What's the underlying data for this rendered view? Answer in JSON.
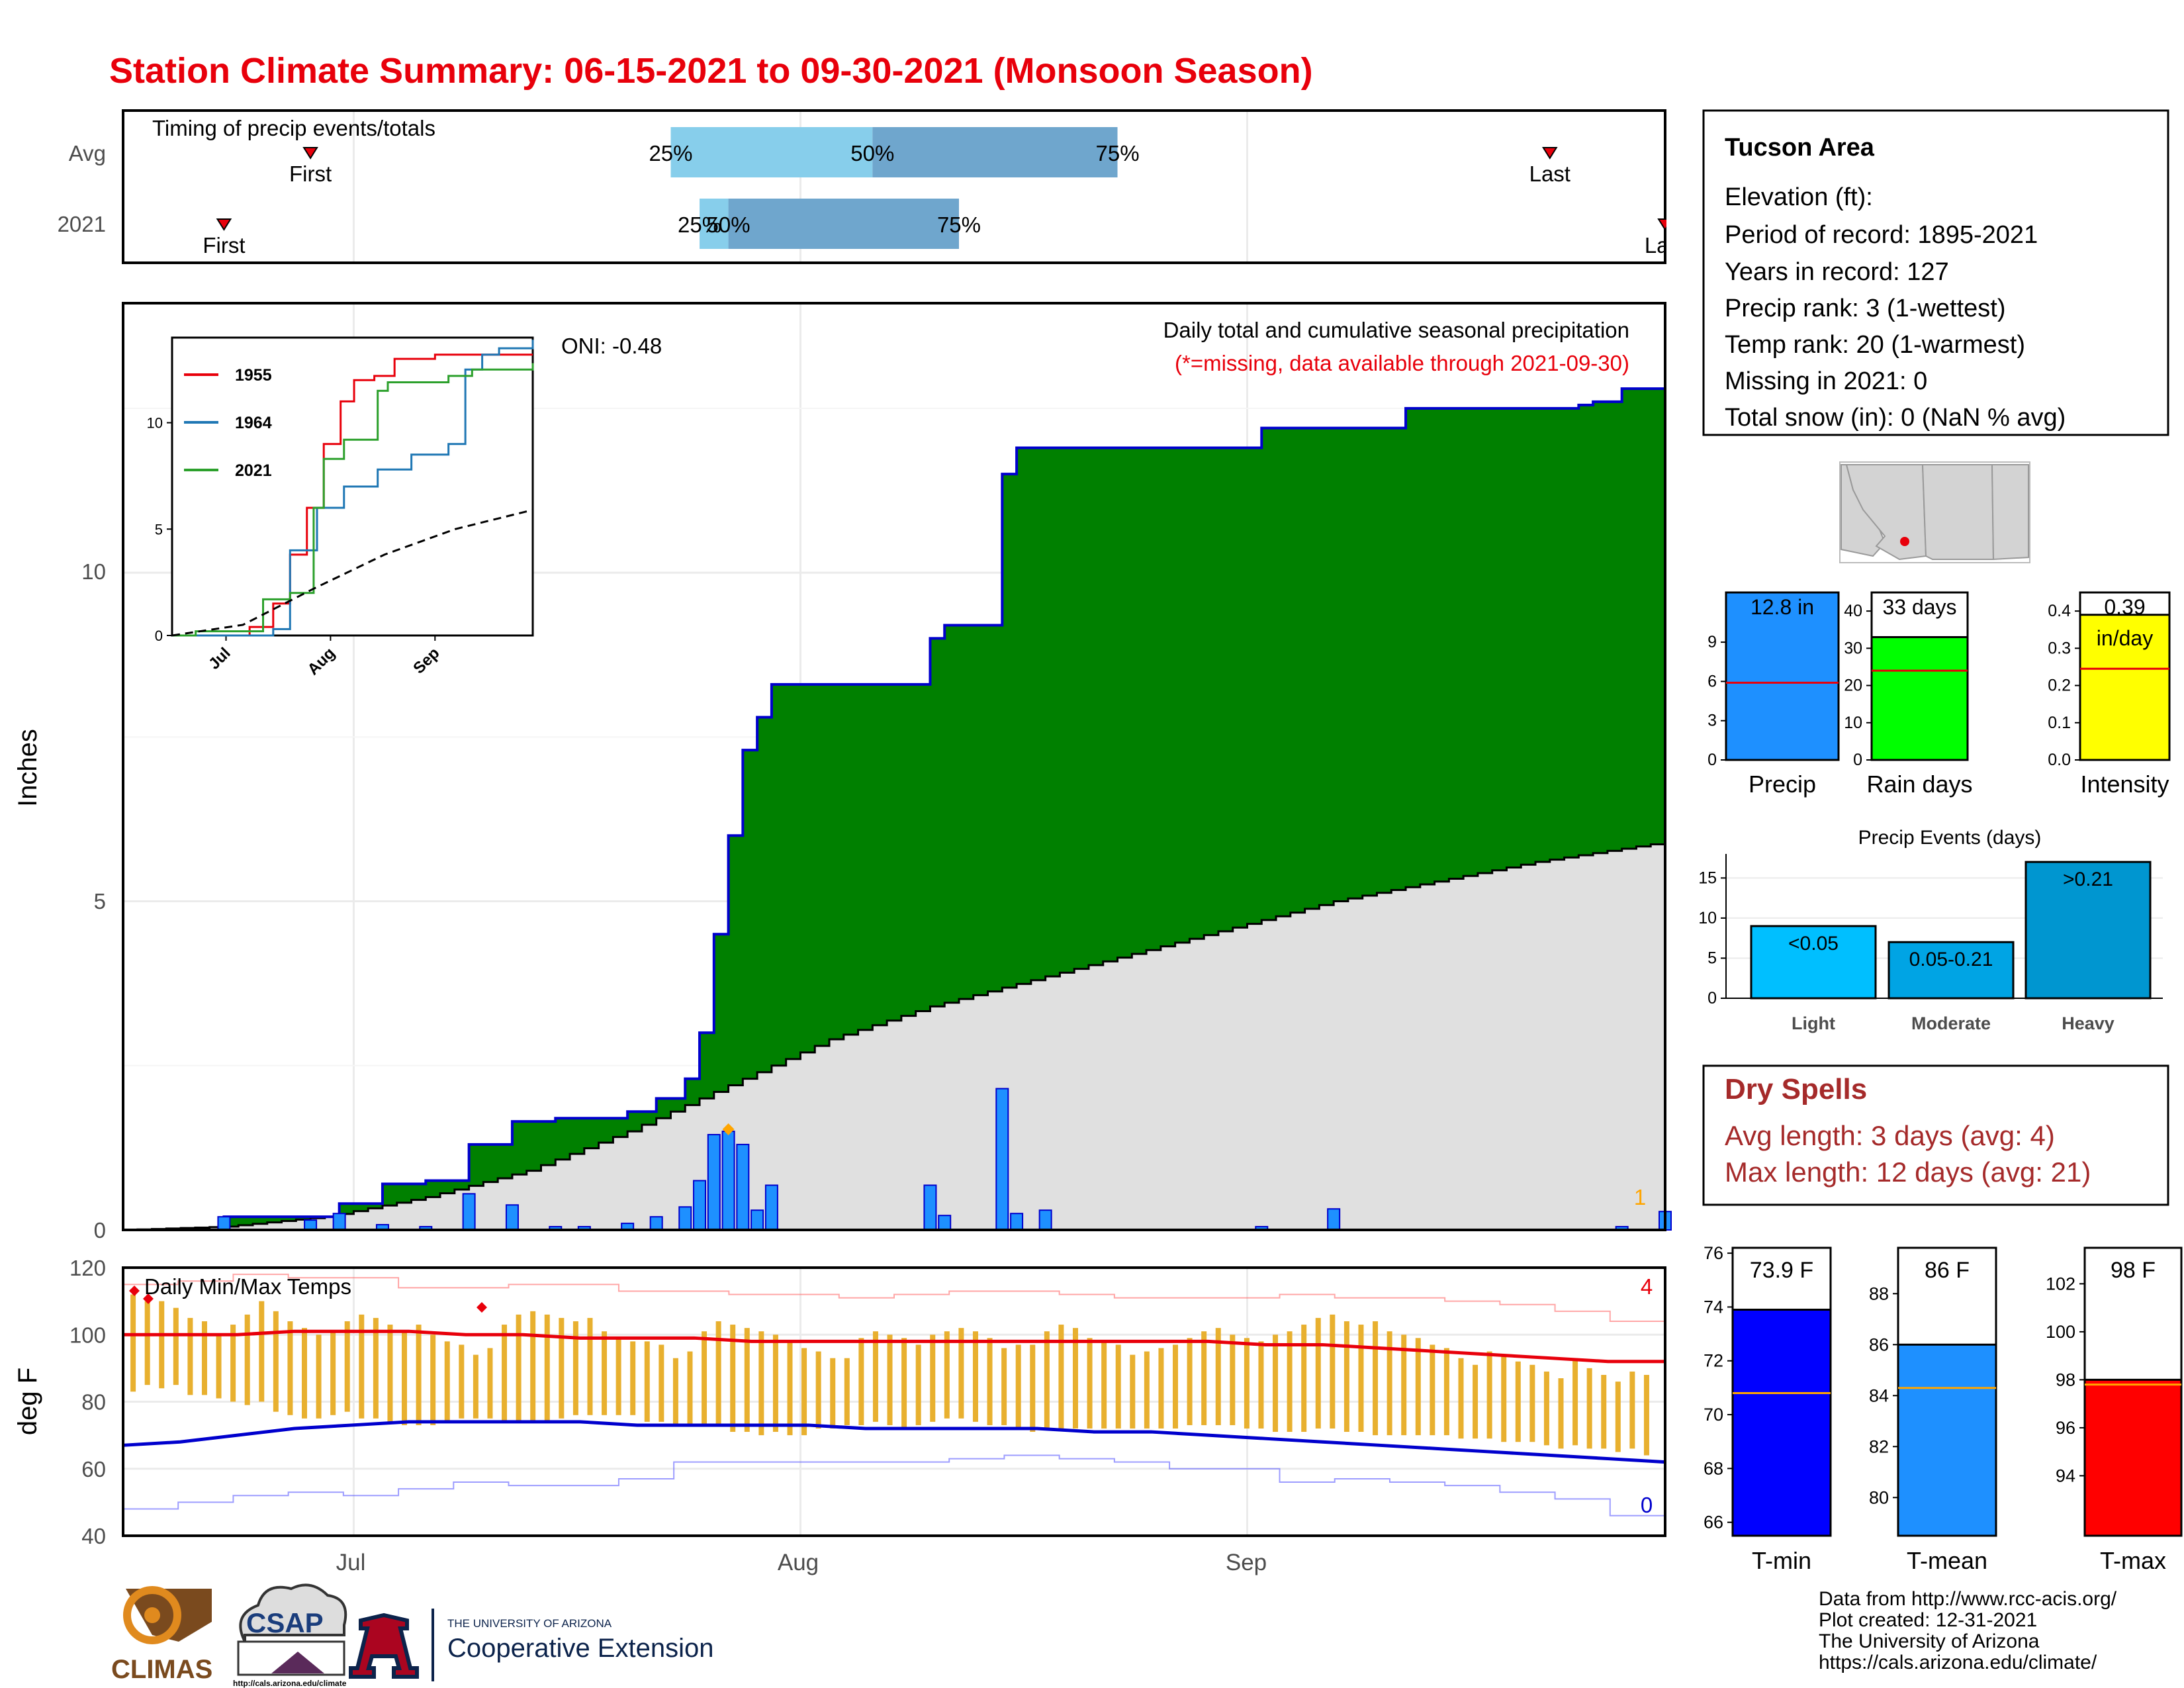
{
  "title": "Station Climate Summary: 06-15-2021 to 09-30-2021 (Monsoon Season)",
  "colors": {
    "title": "#e8000b",
    "green": "#008000",
    "blue": "#1e90ff",
    "darkblue": "#0000cd",
    "gray": "#e0e0e0",
    "light_blue": "#87ceeb",
    "steel_blue": "#6fa6cd",
    "orange": "#ffa500",
    "gold": "#e8b02f",
    "red": "#e8000b",
    "brown_red": "#a52a2a",
    "yellow": "#ffff00",
    "lime": "#00ff00"
  },
  "timing_panel": {
    "label": "Timing of precip events/totals",
    "rows": [
      {
        "name": "Avg",
        "first_label": "First",
        "last_label": "Last",
        "q25": "25%",
        "q50": "50%",
        "q75": "75%",
        "first_date": "2021-06-28",
        "last_date": "2021-09-22",
        "q25_date": "2021-07-23",
        "q50_date": "2021-08-06",
        "q75_date": "2021-08-23"
      },
      {
        "name": "2021",
        "first_label": "First",
        "last_label": "Last",
        "q25": "25%",
        "q50": "50%",
        "q75": "75%",
        "first_date": "2021-06-22",
        "last_date": "2021-09-30",
        "q25_date": "2021-07-25",
        "q50_date": "2021-07-27",
        "q75_date": "2021-08-12"
      }
    ]
  },
  "main_panel": {
    "ylabel": "Inches",
    "oni": "ONI: -0.48",
    "subtitle": "Daily total and cumulative seasonal precipitation",
    "note": "(*=missing, data available through 2021-09-30)",
    "count_label": "1",
    "yticks": [
      "0",
      "5",
      "10"
    ]
  },
  "chart_data": [
    {
      "type": "area",
      "title": "Daily total and cumulative seasonal precipitation",
      "ylabel": "Inches",
      "x_range": [
        "2021-06-15",
        "2021-09-30"
      ],
      "ylim": [
        0,
        14.1
      ],
      "xticks": [
        "Jul",
        "Aug",
        "Sep"
      ],
      "series": [
        {
          "name": "2021 cumulative",
          "x": [
            "2021-06-15",
            "2021-06-22",
            "2021-06-28",
            "2021-06-30",
            "2021-07-03",
            "2021-07-06",
            "2021-07-09",
            "2021-07-12",
            "2021-07-15",
            "2021-07-17",
            "2021-07-20",
            "2021-07-22",
            "2021-07-24",
            "2021-07-25",
            "2021-07-26",
            "2021-07-27",
            "2021-07-28",
            "2021-07-29",
            "2021-07-30",
            "2021-08-01",
            "2021-08-05",
            "2021-08-10",
            "2021-08-11",
            "2021-08-12",
            "2021-08-15",
            "2021-08-16",
            "2021-08-18",
            "2021-08-29",
            "2021-09-02",
            "2021-09-05",
            "2021-09-12",
            "2021-09-20",
            "2021-09-24",
            "2021-09-25",
            "2021-09-27",
            "2021-09-30"
          ],
          "y": [
            0.0,
            0.2,
            0.2,
            0.4,
            0.7,
            0.75,
            1.3,
            1.65,
            1.7,
            1.7,
            1.8,
            2.0,
            2.3,
            3.0,
            4.5,
            6.0,
            7.3,
            7.8,
            8.3,
            8.3,
            8.3,
            9.0,
            9.2,
            9.2,
            11.5,
            11.9,
            11.9,
            11.9,
            12.2,
            12.2,
            12.5,
            12.5,
            12.55,
            12.6,
            12.8,
            12.8
          ]
        },
        {
          "name": "Avg cumulative",
          "x": [
            "2021-06-15",
            "2021-06-22",
            "2021-06-29",
            "2021-07-06",
            "2021-07-13",
            "2021-07-20",
            "2021-07-27",
            "2021-08-03",
            "2021-08-10",
            "2021-08-17",
            "2021-08-24",
            "2021-08-31",
            "2021-09-07",
            "2021-09-14",
            "2021-09-21",
            "2021-09-30"
          ],
          "y": [
            0.0,
            0.05,
            0.2,
            0.5,
            0.9,
            1.5,
            2.2,
            2.9,
            3.4,
            3.8,
            4.2,
            4.6,
            5.0,
            5.3,
            5.6,
            5.9
          ]
        },
        {
          "name": "Daily precip",
          "x": [
            "2021-06-22",
            "2021-06-28",
            "2021-06-30",
            "2021-07-03",
            "2021-07-06",
            "2021-07-09",
            "2021-07-12",
            "2021-07-15",
            "2021-07-17",
            "2021-07-20",
            "2021-07-22",
            "2021-07-24",
            "2021-07-25",
            "2021-07-26",
            "2021-07-27",
            "2021-07-28",
            "2021-07-29",
            "2021-07-30",
            "2021-08-10",
            "2021-08-11",
            "2021-08-15",
            "2021-08-16",
            "2021-08-18",
            "2021-09-02",
            "2021-09-07",
            "2021-09-27",
            "2021-09-30"
          ],
          "y": [
            0.2,
            0.15,
            0.25,
            0.08,
            0.05,
            0.55,
            0.38,
            0.05,
            0.05,
            0.1,
            0.2,
            0.35,
            0.75,
            1.45,
            1.5,
            1.3,
            0.3,
            0.68,
            0.68,
            0.22,
            2.15,
            0.25,
            0.3,
            0.05,
            0.32,
            0.05,
            0.28
          ]
        }
      ]
    },
    {
      "type": "line",
      "title": "",
      "x_range": [
        "2021-06-15",
        "2021-09-30"
      ],
      "ylim": [
        0,
        14
      ],
      "yticks": [
        "0",
        "5",
        "10"
      ],
      "xticks": [
        "Jul",
        "Aug",
        "Sep"
      ],
      "legend": [
        "1955",
        "1964",
        "2021"
      ],
      "series": [
        {
          "name": "1955",
          "color": "#e8000b",
          "x": [
            "2021-06-15",
            "2021-07-08",
            "2021-07-15",
            "2021-07-20",
            "2021-07-25",
            "2021-07-30",
            "2021-08-04",
            "2021-08-08",
            "2021-08-14",
            "2021-08-20",
            "2021-09-01",
            "2021-09-15",
            "2021-09-30"
          ],
          "y": [
            0,
            0.4,
            1.5,
            3.8,
            6.0,
            9.0,
            11.0,
            12.0,
            12.2,
            13.0,
            13.2,
            13.2,
            13.2
          ]
        },
        {
          "name": "1964",
          "color": "#1f77b4",
          "x": [
            "2021-06-15",
            "2021-07-15",
            "2021-07-20",
            "2021-07-28",
            "2021-08-05",
            "2021-08-15",
            "2021-08-25",
            "2021-09-05",
            "2021-09-10",
            "2021-09-15",
            "2021-09-20",
            "2021-09-30"
          ],
          "y": [
            0,
            0.3,
            4.0,
            6.0,
            7.0,
            7.8,
            8.5,
            9.0,
            12.5,
            13.2,
            13.5,
            13.9
          ]
        },
        {
          "name": "2021",
          "color": "#2ca02c",
          "x": [
            "2021-06-15",
            "2021-06-22",
            "2021-07-12",
            "2021-07-20",
            "2021-07-27",
            "2021-07-30",
            "2021-08-05",
            "2021-08-15",
            "2021-08-18",
            "2021-09-05",
            "2021-09-12",
            "2021-09-30"
          ],
          "y": [
            0,
            0.2,
            1.7,
            2.0,
            6.0,
            8.3,
            9.2,
            11.5,
            11.9,
            12.2,
            12.5,
            12.8
          ]
        },
        {
          "name": "Avg",
          "color": "#000000",
          "x": [
            "2021-06-15",
            "2021-07-06",
            "2021-07-27",
            "2021-08-17",
            "2021-09-07",
            "2021-09-30"
          ],
          "y": [
            0,
            0.5,
            2.2,
            3.8,
            5.0,
            5.9
          ]
        }
      ]
    },
    {
      "type": "bar",
      "title": "Daily Min/Max Temps",
      "ylabel": "deg F",
      "ylim": [
        40,
        120
      ],
      "yticks": [
        "40",
        "60",
        "80",
        "100",
        "120"
      ],
      "xticks": [
        "Jul",
        "Aug",
        "Sep"
      ],
      "max_count_label": "4",
      "min_count_label": "0",
      "series": [
        {
          "name": "Tmax",
          "y": [
            112,
            110,
            110,
            108,
            105,
            104,
            100,
            103,
            106,
            110,
            107,
            104,
            102,
            100,
            101,
            104,
            106,
            105,
            103,
            101,
            103,
            100,
            98,
            97,
            94,
            96,
            103,
            106,
            107,
            106,
            105,
            104,
            105,
            101,
            99,
            98,
            98,
            97,
            93,
            95,
            101,
            104,
            103,
            102,
            101,
            100,
            98,
            96,
            95,
            93,
            93,
            99,
            101,
            100,
            99,
            97,
            100,
            101,
            102,
            101,
            99,
            96,
            97,
            97,
            101,
            103,
            102,
            99,
            98,
            97,
            94,
            95,
            96,
            97,
            99,
            101,
            102,
            100,
            99,
            98,
            100,
            101,
            103,
            105,
            106,
            104,
            103,
            104,
            101,
            100,
            99,
            97,
            96,
            93,
            91,
            95,
            94,
            92,
            91,
            89,
            87,
            93,
            90,
            88,
            86,
            89,
            88
          ]
        },
        {
          "name": "Tmin",
          "y": [
            83,
            85,
            84,
            85,
            82,
            82,
            81,
            80,
            79,
            80,
            77,
            76,
            75,
            75,
            76,
            77,
            75,
            75,
            74,
            73,
            73,
            73,
            74,
            75,
            75,
            75,
            74,
            74,
            74,
            74,
            75,
            76,
            76,
            76,
            76,
            76,
            74,
            74,
            73,
            73,
            73,
            73,
            71,
            71,
            70,
            71,
            70,
            70,
            72,
            72,
            73,
            73,
            74,
            73,
            72,
            73,
            74,
            75,
            75,
            74,
            73,
            73,
            72,
            71,
            72,
            72,
            72,
            72,
            72,
            72,
            72,
            72,
            72,
            72,
            73,
            73,
            73,
            73,
            72,
            72,
            71,
            71,
            71,
            72,
            72,
            71,
            71,
            70,
            70,
            70,
            70,
            70,
            70,
            69,
            69,
            69,
            68,
            68,
            68,
            67,
            66,
            67,
            66,
            66,
            65,
            66,
            64
          ]
        },
        {
          "name": "Avg max",
          "y": [
            100,
            100,
            100,
            101,
            101,
            101,
            100,
            100,
            99,
            99,
            99,
            98,
            98,
            98,
            98,
            98,
            98,
            98,
            98,
            98,
            97,
            97,
            96,
            95,
            94,
            93,
            92,
            92
          ]
        },
        {
          "name": "Avg min",
          "y": [
            67,
            68,
            70,
            72,
            73,
            74,
            74,
            74,
            74,
            73,
            73,
            73,
            73,
            72,
            72,
            72,
            72,
            71,
            71,
            70,
            69,
            68,
            67,
            66,
            65,
            64,
            63,
            62
          ]
        },
        {
          "name": "Record max",
          "y": [
            115,
            116,
            118,
            117,
            117,
            114,
            114,
            115,
            115,
            113,
            113,
            112,
            112,
            111,
            112,
            113,
            113,
            112,
            111,
            111,
            111,
            112,
            111,
            111,
            110,
            109,
            107,
            104
          ]
        },
        {
          "name": "Record min",
          "y": [
            48,
            50,
            52,
            53,
            52,
            54,
            56,
            55,
            55,
            57,
            62,
            62,
            62,
            62,
            62,
            63,
            64,
            63,
            62,
            60,
            60,
            56,
            57,
            56,
            55,
            53,
            51,
            46
          ]
        }
      ]
    },
    {
      "type": "bar",
      "title": "Precip Events (days)",
      "categories": [
        "Light",
        "Moderate",
        "Heavy"
      ],
      "values": [
        9,
        7,
        17
      ],
      "ylim": [
        0,
        18
      ],
      "yticks": [
        "0",
        "5",
        "10",
        "15"
      ],
      "bar_labels": [
        "<0.05",
        "0.05-0.21",
        ">0.21"
      ]
    }
  ],
  "info_box": {
    "title": "Tucson Area",
    "lines": [
      "Elevation (ft):",
      "Period of record: 1895-2021",
      "Years in record: 127",
      "Precip rank: 3 (1-wettest)",
      "Temp rank: 20 (1-warmest)",
      "Missing in 2021: 0",
      "Total snow (in): 0 (NaN % avg)"
    ]
  },
  "gauges_precip": [
    {
      "label": "Precip",
      "value_label": "12.8 in",
      "value": 12.8,
      "ymax": 12.8,
      "avg": 5.9,
      "yticks": [
        "0",
        "3",
        "6",
        "9"
      ],
      "tick_vals": [
        0,
        3,
        6,
        9
      ],
      "color": "#1e90ff"
    },
    {
      "label": "Rain days",
      "value_label": "33 days",
      "value": 33,
      "ymax": 45,
      "avg": 24,
      "yticks": [
        "0",
        "10",
        "20",
        "30",
        "40"
      ],
      "tick_vals": [
        0,
        10,
        20,
        30,
        40
      ],
      "color": "#00ff00"
    },
    {
      "label": "Intensity",
      "value_label": "0.39",
      "value2_label": "in/day",
      "value": 0.39,
      "ymax": 0.45,
      "avg": 0.245,
      "yticks": [
        "0.0",
        "0.1",
        "0.2",
        "0.3",
        "0.4"
      ],
      "tick_vals": [
        0,
        0.1,
        0.2,
        0.3,
        0.4
      ],
      "color": "#ffff00"
    }
  ],
  "dry_spells": {
    "title": "Dry Spells",
    "avg_line": "Avg length: 3 days (avg: 4)",
    "max_line": "Max length: 12 days (avg: 21)"
  },
  "gauges_temp": [
    {
      "label": "T-min",
      "value_label": "73.9 F",
      "value": 73.9,
      "ymin": 65.5,
      "ymax": 76.2,
      "avg": 70.8,
      "yticks": [
        "66",
        "68",
        "70",
        "72",
        "74",
        "76"
      ],
      "tick_vals": [
        66,
        68,
        70,
        72,
        74,
        76
      ],
      "color": "#0000ff"
    },
    {
      "label": "T-mean",
      "value_label": "86 F",
      "value": 86,
      "ymin": 78.5,
      "ymax": 89.8,
      "avg": 84.3,
      "yticks": [
        "80",
        "82",
        "84",
        "86",
        "88"
      ],
      "tick_vals": [
        80,
        82,
        84,
        86,
        88
      ],
      "color": "#1e90ff"
    },
    {
      "label": "T-max",
      "value_label": "98 F",
      "value": 98,
      "ymin": 91.5,
      "ymax": 103.5,
      "avg": 97.8,
      "yticks": [
        "94",
        "96",
        "98",
        "100",
        "102"
      ],
      "tick_vals": [
        94,
        96,
        98,
        100,
        102
      ],
      "color": "#ff0000"
    }
  ],
  "footer": {
    "lines": [
      "Data from http://www.rcc-acis.org/",
      "Plot created: 12-31-2021",
      "The University of Arizona",
      "https://cals.arizona.edu/climate/"
    ],
    "logos": {
      "climas": "CLIMAS",
      "csap": "CSAP",
      "csap_url": "http://cals.arizona.edu/climate",
      "ua_small": "THE UNIVERSITY OF ARIZONA",
      "ua_big": "Cooperative Extension"
    }
  }
}
